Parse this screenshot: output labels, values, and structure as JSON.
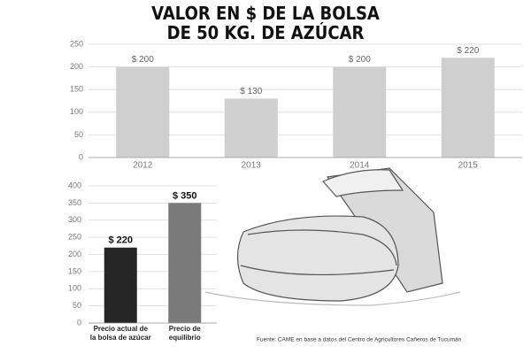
{
  "chart_data": [
    {
      "type": "bar",
      "title": [
        "VALOR EN $ DE LA BOLSA",
        "DE 50 KG. DE AZÚCAR"
      ],
      "categories": [
        "2012",
        "2013",
        "2014",
        "2015"
      ],
      "values": [
        200,
        130,
        200,
        220
      ],
      "value_labels": [
        "$ 200",
        "$ 130",
        "$ 200",
        "$ 220"
      ],
      "color": "#cfcfcf",
      "ylim": [
        0,
        250
      ],
      "yticks": [
        0,
        50,
        100,
        150,
        200,
        250
      ],
      "grid": true
    },
    {
      "type": "bar",
      "categories": [
        [
          "Precio actual de",
          "la bolsa de azúcar"
        ],
        [
          "Precio de",
          "equilibrio"
        ]
      ],
      "values": [
        220,
        350
      ],
      "value_labels": [
        "$ 220",
        "$ 350"
      ],
      "colors": [
        "#262626",
        "#7a7a7a"
      ],
      "ylim": [
        0,
        400
      ],
      "yticks": [
        0,
        50,
        100,
        150,
        200,
        250,
        300,
        350,
        400
      ],
      "grid": true,
      "source": "Fuente: CAME en base a datos del Centro de Agricultores Cañeros de Tucumán"
    }
  ]
}
